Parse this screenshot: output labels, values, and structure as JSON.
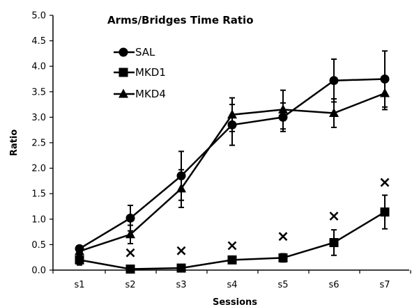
{
  "chart_data": {
    "type": "line",
    "title": "Arms/Bridges Time Ratio",
    "xlabel": "Sessions",
    "ylabel": "Ratio",
    "categories": [
      "s1",
      "s2",
      "s3",
      "s4",
      "s5",
      "s6",
      "s7"
    ],
    "ylim": [
      0,
      5
    ],
    "yticks": [
      0.0,
      0.5,
      1.0,
      1.5,
      2.0,
      2.5,
      3.0,
      3.5,
      4.0,
      4.5,
      5.0
    ],
    "ytick_labels": [
      "0.0",
      "0.5",
      "1.0",
      "1.5",
      "2.0",
      "2.5",
      "3.0",
      "3.5",
      "4.0",
      "4.5",
      "5.0"
    ],
    "grid": false,
    "legend_position": "top-left",
    "series": [
      {
        "name": "SAL",
        "marker": "circle",
        "values": [
          0.42,
          1.02,
          1.85,
          2.85,
          3.0,
          3.72,
          3.75
        ],
        "errors": [
          0.0,
          0.25,
          0.48,
          0.4,
          0.28,
          0.42,
          0.55
        ]
      },
      {
        "name": "MKD1",
        "marker": "square",
        "values": [
          0.2,
          0.02,
          0.04,
          0.2,
          0.24,
          0.54,
          1.14
        ],
        "errors": [
          0.1,
          0.0,
          0.05,
          0.0,
          0.08,
          0.25,
          0.33
        ]
      },
      {
        "name": "MKD4",
        "marker": "triangle",
        "values": [
          0.37,
          0.7,
          1.6,
          3.05,
          3.15,
          3.08,
          3.47
        ],
        "errors": [
          0.0,
          0.18,
          0.37,
          0.33,
          0.38,
          0.28,
          0.32
        ]
      }
    ],
    "annotations": {
      "marker": "×",
      "x_categories": [
        "s2",
        "s3",
        "s4",
        "s5",
        "s6",
        "s7"
      ],
      "y_values": [
        0.34,
        0.38,
        0.48,
        0.66,
        1.06,
        1.72
      ]
    }
  }
}
